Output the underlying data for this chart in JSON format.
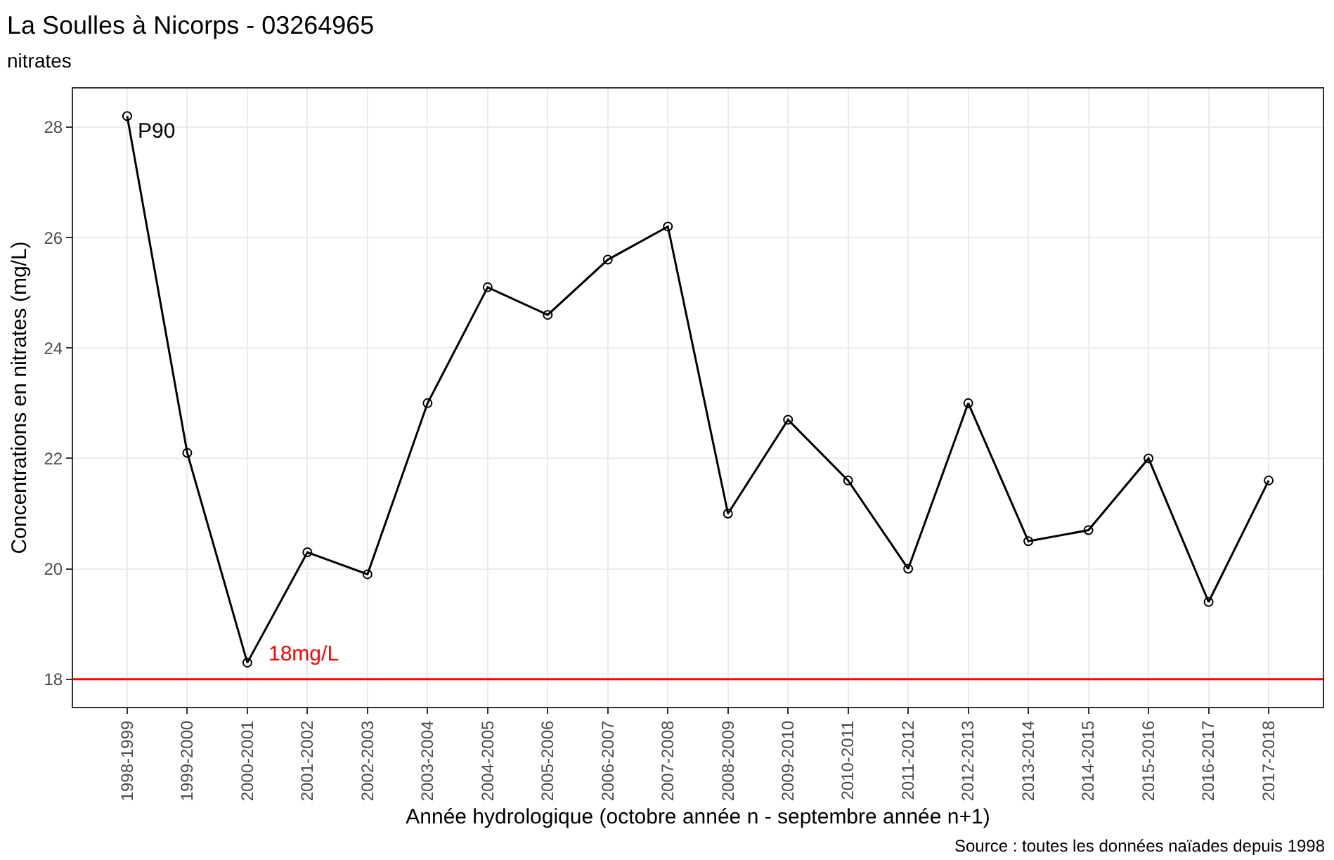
{
  "chart_data": {
    "type": "line",
    "title": "La Soulles à Nicorps - 03264965",
    "subtitle": "nitrates",
    "xlabel": "Année hydrologique (octobre année n - septembre année n+1)",
    "ylabel": "Concentrations en nitrates (mg/L)",
    "categories": [
      "1998-1999",
      "1999-2000",
      "2000-2001",
      "2001-2002",
      "2002-2003",
      "2003-2004",
      "2004-2005",
      "2005-2006",
      "2006-2007",
      "2007-2008",
      "2008-2009",
      "2009-2010",
      "2010-2011",
      "2011-2012",
      "2012-2013",
      "2013-2014",
      "2014-2015",
      "2015-2016",
      "2016-2017",
      "2017-2018"
    ],
    "series": [
      {
        "color": "#000000",
        "values": [
          28.2,
          22.1,
          18.3,
          20.3,
          19.9,
          23.0,
          25.1,
          24.6,
          25.6,
          26.2,
          21.0,
          22.7,
          21.6,
          20.0,
          23.0,
          20.5,
          20.7,
          22.0,
          19.4,
          21.6
        ]
      }
    ],
    "ylim": [
      17.5,
      28.7
    ],
    "yticks": [
      18,
      20,
      22,
      24,
      26,
      28
    ],
    "grid": true,
    "marker": "circle",
    "line_style": "solid",
    "ref_lines": [
      {
        "axis": "y",
        "value": 18,
        "label": "18mg/L",
        "color": "#ff0000"
      }
    ],
    "annotations": [
      {
        "text": "P90",
        "x": "1998-1999",
        "y": 28.2
      },
      "Source : toutes les données naïades depuis 1998"
    ]
  }
}
